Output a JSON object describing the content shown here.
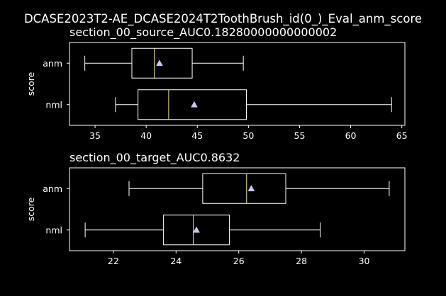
{
  "suptitle": "DCASE2023T2-AE_DCASE2024T2ToothBrush_id(0_)_Eval_anm_score",
  "colors": {
    "background": "#000000",
    "axes": "#ffffff",
    "median": "#f0e68c",
    "mean_marker": "#c8c8f0"
  },
  "chart_data": [
    {
      "type": "box",
      "title": "section_00_source_AUC0.18280000000000002",
      "xlabel": "",
      "ylabel": "score",
      "xlim": [
        32.5,
        65.3
      ],
      "xticks": [
        35,
        40,
        45,
        50,
        55,
        60,
        65
      ],
      "grid": false,
      "series": [
        {
          "name": "anm",
          "whisker_low": 34.0,
          "q1": 38.6,
          "median": 40.8,
          "q3": 44.5,
          "whisker_high": 49.5,
          "mean": 41.3
        },
        {
          "name": "nml",
          "whisker_low": 37.0,
          "q1": 39.2,
          "median": 42.2,
          "q3": 49.8,
          "whisker_high": 64.0,
          "mean": 44.7
        }
      ]
    },
    {
      "type": "box",
      "title": "section_00_target_AUC0.8632",
      "xlabel": "",
      "ylabel": "score",
      "xlim": [
        20.6,
        31.3
      ],
      "xticks": [
        22,
        24,
        26,
        28,
        30
      ],
      "grid": false,
      "series": [
        {
          "name": "anm",
          "whisker_low": 22.5,
          "q1": 24.85,
          "median": 26.25,
          "q3": 27.5,
          "whisker_high": 30.8,
          "mean": 26.4
        },
        {
          "name": "nml",
          "whisker_low": 21.1,
          "q1": 23.6,
          "median": 24.55,
          "q3": 25.7,
          "whisker_high": 28.6,
          "mean": 24.65
        }
      ]
    }
  ]
}
